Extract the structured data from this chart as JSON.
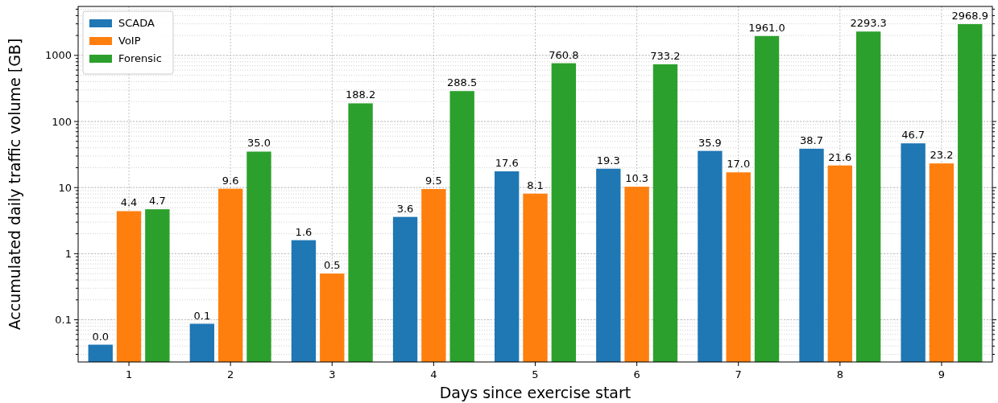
{
  "chart_data": {
    "type": "bar",
    "xlabel": "Days since exercise start",
    "ylabel": "Accumulated daily traffic volume [GB]",
    "categories": [
      "1",
      "2",
      "3",
      "4",
      "5",
      "6",
      "7",
      "8",
      "9"
    ],
    "series": [
      {
        "name": "SCADA",
        "color": "#1f77b4",
        "values": [
          0.042,
          0.087,
          1.6,
          3.6,
          17.6,
          19.3,
          35.9,
          38.7,
          46.7
        ],
        "value_labels": [
          "0.0",
          "0.1",
          "1.6",
          "3.6",
          "17.6",
          "19.3",
          "35.9",
          "38.7",
          "46.7"
        ]
      },
      {
        "name": "VoIP",
        "color": "#ff7f0e",
        "values": [
          4.4,
          9.6,
          0.5,
          9.5,
          8.1,
          10.3,
          17.0,
          21.6,
          23.2
        ],
        "value_labels": [
          "4.4",
          "9.6",
          "0.5",
          "9.5",
          "8.1",
          "10.3",
          "17.0",
          "21.6",
          "23.2"
        ]
      },
      {
        "name": "Forensic",
        "color": "#2ca02c",
        "values": [
          4.7,
          35.0,
          188.2,
          288.5,
          760.8,
          733.2,
          1961.0,
          2293.3,
          2968.9
        ],
        "value_labels": [
          "4.7",
          "35.0",
          "188.2",
          "288.5",
          "760.8",
          "733.2",
          "1961.0",
          "2293.3",
          "2968.9"
        ]
      }
    ],
    "log": true,
    "ylim": [
      0.023,
      5500
    ],
    "yticks": [
      0.1,
      1,
      10,
      100,
      1000
    ],
    "grid": true,
    "legend": "top left"
  }
}
